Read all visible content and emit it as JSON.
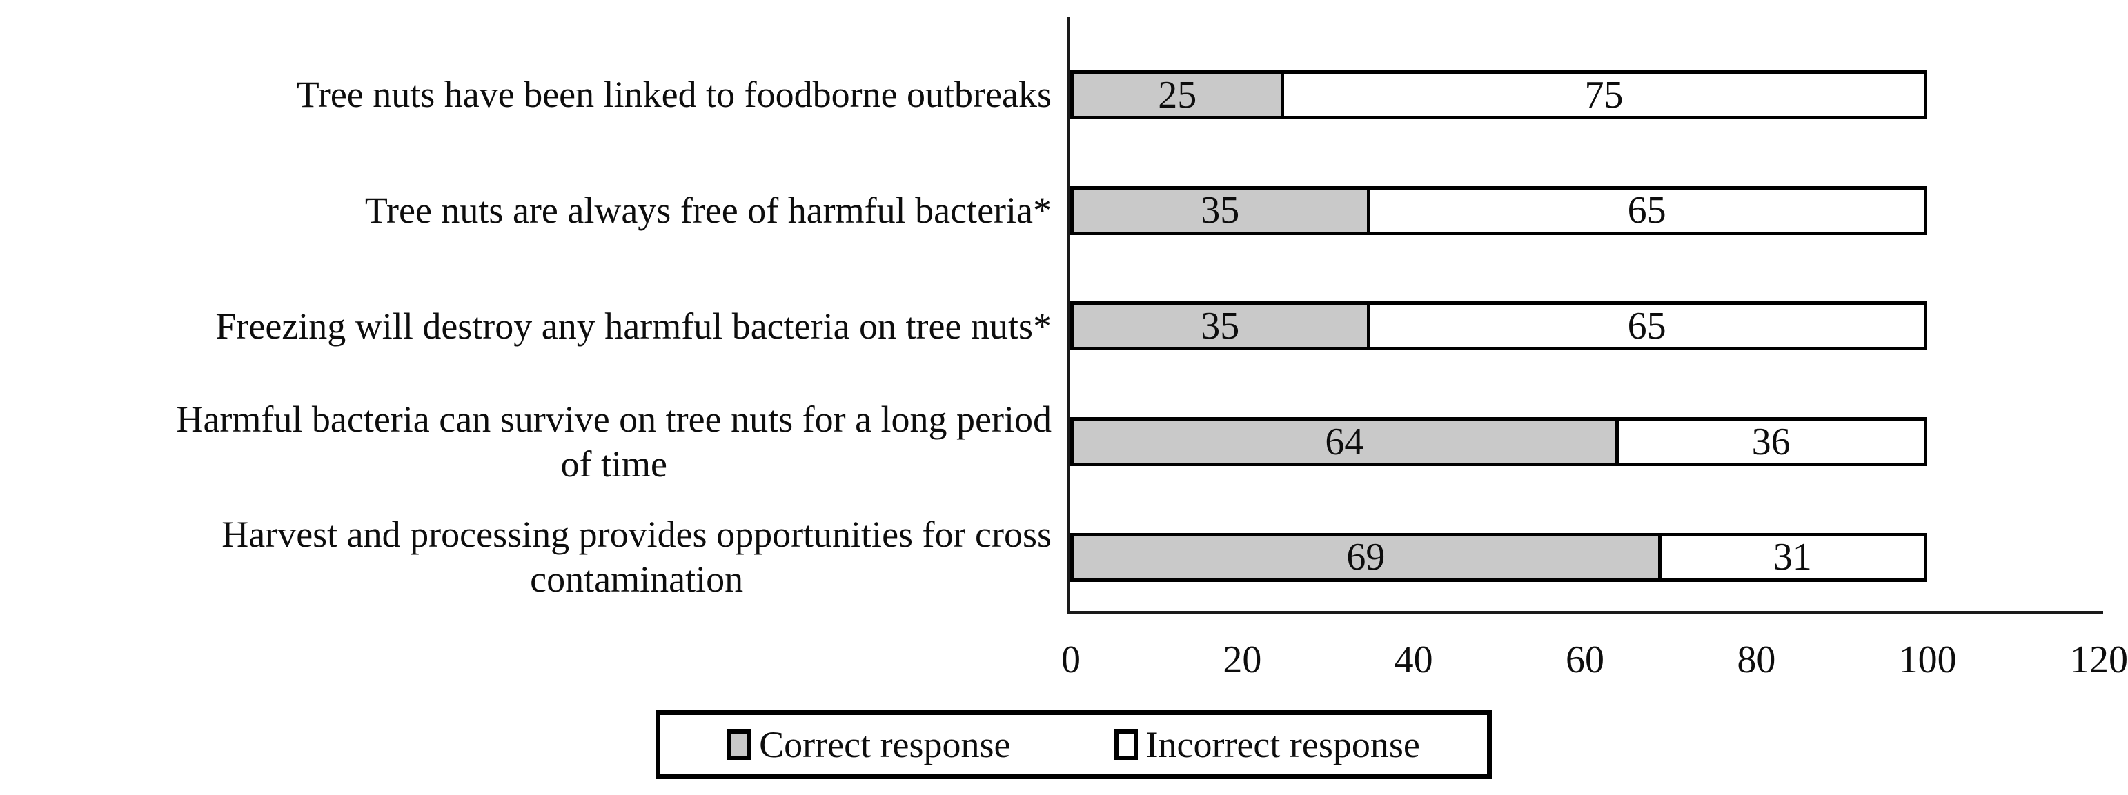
{
  "chart_data": {
    "type": "bar",
    "orientation": "horizontal-stacked",
    "title": "",
    "xlabel": "",
    "ylabel": "",
    "grid": false,
    "legend_position": "bottom",
    "xlim": [
      0,
      120
    ],
    "x_ticks": [
      0,
      20,
      40,
      60,
      80,
      100,
      120
    ],
    "categories": [
      "Tree nuts have been linked to foodborne outbreaks",
      "Tree nuts are always free of harmful bacteria*",
      "Freezing will destroy any harmful bacteria on tree nuts*",
      "Harmful bacteria can survive on tree nuts for a long period of time",
      "Harvest and processing provides opportunities for cross contamination"
    ],
    "category_lines": [
      [
        "Tree nuts have been linked to foodborne outbreaks"
      ],
      [
        "Tree nuts are always free of harmful bacteria*"
      ],
      [
        "Freezing will destroy any harmful bacteria on tree nuts*"
      ],
      [
        "Harmful bacteria can survive on tree nuts for a long period",
        "of time"
      ],
      [
        "Harvest and processing provides opportunities for cross",
        "contamination"
      ]
    ],
    "series": [
      {
        "name": "Correct response",
        "values": [
          25,
          35,
          35,
          64,
          69
        ],
        "fill": "#C9C9C9"
      },
      {
        "name": "Incorrect response",
        "values": [
          75,
          65,
          65,
          36,
          31
        ],
        "fill": "#FFFFFF"
      }
    ],
    "colors": {
      "bar_border": "#000000",
      "text": "#0D0D0D",
      "axis": "#1A1A1A",
      "background": "#FFFFFF"
    }
  }
}
